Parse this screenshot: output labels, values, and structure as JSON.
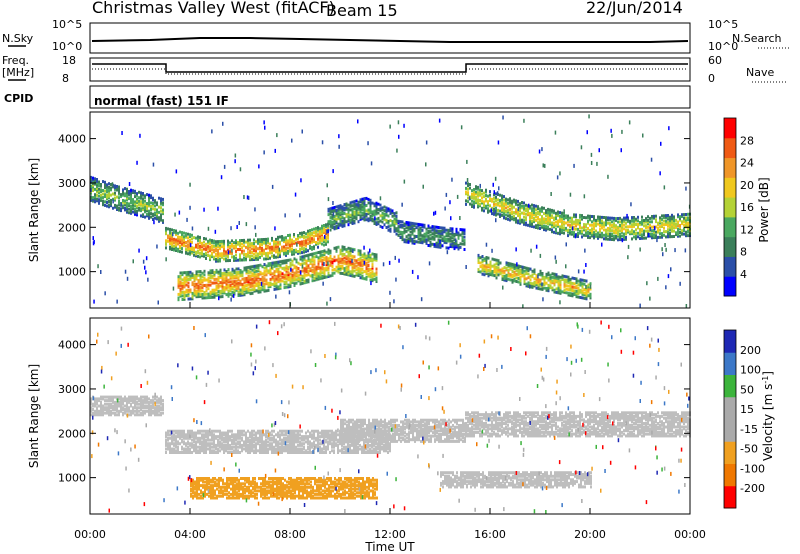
{
  "header": {
    "title": "Christmas Valley West (fitACF)",
    "beam": "Beam 15",
    "date": "22/Jun/2014"
  },
  "strips": {
    "nsky_label": "N.Sky",
    "nsearch_label": "N.Search",
    "freq_label_1": "Freq.",
    "freq_label_2": "[MHz]",
    "nave_label": "Nave",
    "cpid_label": "CPID",
    "cpid_value": "normal (fast) 151 IF",
    "noise_ticks_left": [
      "10^5",
      "10^0"
    ],
    "noise_ticks_right": [
      "10^5",
      "10^0"
    ],
    "freq_ticks_left": [
      "18",
      "8"
    ],
    "nave_ticks_right": [
      "60",
      "0"
    ]
  },
  "colors": {
    "power_scale": [
      "#0000ff",
      "#2b4fa8",
      "#3b7f5a",
      "#4aa860",
      "#b4d236",
      "#f0c81e",
      "#f09628",
      "#f05a14",
      "#ff0000"
    ],
    "velocity_scale": [
      "#1e28b4",
      "#3c78c8",
      "#3cb43c",
      "#aaaaaa",
      "#aaaaaa",
      "#f0a020",
      "#f07800",
      "#ff0000"
    ],
    "ground_scatter": "#bebebe"
  },
  "chart_data": [
    {
      "type": "heatmap",
      "name": "power",
      "ylabel": "Slant Range [km]",
      "xlabel": "",
      "x_ticks": [
        "00:00",
        "04:00",
        "08:00",
        "12:00",
        "16:00",
        "20:00",
        "00:00"
      ],
      "y_ticks": [
        "1000",
        "2000",
        "3000",
        "4000"
      ],
      "xlim_hours": [
        0,
        24
      ],
      "ylim_km": [
        180,
        4600
      ],
      "colorbar": {
        "label": "Power [dB]",
        "ticks": [
          "28",
          "24",
          "20",
          "16",
          "12",
          "8",
          "4"
        ],
        "range": [
          0,
          32
        ]
      },
      "echo_bands": [
        {
          "start_h": 0.0,
          "end_h": 2.9,
          "points": [
            [
              0.0,
              2900
            ],
            [
              1.0,
              2700
            ],
            [
              2.0,
              2550
            ],
            [
              2.9,
              2400
            ]
          ],
          "width_km": 260,
          "level": 16
        },
        {
          "start_h": 3.0,
          "end_h": 9.5,
          "points": [
            [
              3.0,
              1800
            ],
            [
              5.0,
              1500
            ],
            [
              7.0,
              1550
            ],
            [
              8.5,
              1700
            ],
            [
              9.5,
              1900
            ]
          ],
          "width_km": 230,
          "level": 26
        },
        {
          "start_h": 9.5,
          "end_h": 12.3,
          "points": [
            [
              9.5,
              2200
            ],
            [
              11.0,
              2450
            ],
            [
              12.3,
              2100
            ]
          ],
          "width_km": 240,
          "level": 14
        },
        {
          "start_h": 12.3,
          "end_h": 15.0,
          "points": [
            [
              12.3,
              1950
            ],
            [
              14.0,
              1800
            ],
            [
              15.0,
              1750
            ]
          ],
          "width_km": 220,
          "level": 12
        },
        {
          "start_h": 3.5,
          "end_h": 11.5,
          "points": [
            [
              3.5,
              700
            ],
            [
              6.0,
              800
            ],
            [
              8.0,
              1000
            ],
            [
              10.0,
              1300
            ],
            [
              11.5,
              1100
            ]
          ],
          "width_km": 300,
          "level": 27
        },
        {
          "start_h": 15.0,
          "end_h": 24.0,
          "points": [
            [
              15.0,
              2800
            ],
            [
              17.0,
              2400
            ],
            [
              19.0,
              2100
            ],
            [
              21.0,
              2000
            ],
            [
              24.0,
              2100
            ]
          ],
          "width_km": 250,
          "level": 20
        },
        {
          "start_h": 15.5,
          "end_h": 20.0,
          "points": [
            [
              15.5,
              1200
            ],
            [
              17.5,
              900
            ],
            [
              20.0,
              600
            ]
          ],
          "width_km": 200,
          "level": 22
        }
      ]
    },
    {
      "type": "heatmap",
      "name": "velocity",
      "ylabel": "Slant Range [km]",
      "xlabel": "Time UT",
      "x_ticks": [
        "00:00",
        "04:00",
        "08:00",
        "12:00",
        "16:00",
        "20:00",
        "00:00"
      ],
      "y_ticks": [
        "1000",
        "2000",
        "3000",
        "4000"
      ],
      "xlim_hours": [
        0,
        24
      ],
      "ylim_km": [
        180,
        4600
      ],
      "colorbar": {
        "label": "Velocity [m s^-1]",
        "ticks": [
          "200",
          "100",
          "50",
          "15",
          "-15",
          "-50",
          "-100",
          "-200"
        ],
        "range": [
          -250,
          250
        ]
      },
      "regions": [
        {
          "start_h": 0.0,
          "end_h": 2.9,
          "center_km": 2650,
          "width_km": 400,
          "kind": "ground"
        },
        {
          "start_h": 3.0,
          "end_h": 12.0,
          "center_km": 1850,
          "width_km": 500,
          "kind": "ground"
        },
        {
          "start_h": 10.0,
          "end_h": 15.0,
          "center_km": 2100,
          "width_km": 500,
          "kind": "ground"
        },
        {
          "start_h": 15.0,
          "end_h": 24.0,
          "center_km": 2250,
          "width_km": 550,
          "kind": "ground"
        },
        {
          "start_h": 14.0,
          "end_h": 20.0,
          "center_km": 1000,
          "width_km": 350,
          "kind": "ground"
        },
        {
          "start_h": 4.0,
          "end_h": 11.5,
          "center_km": 800,
          "width_km": 450,
          "kind": "velocity",
          "value": -60
        }
      ]
    }
  ]
}
